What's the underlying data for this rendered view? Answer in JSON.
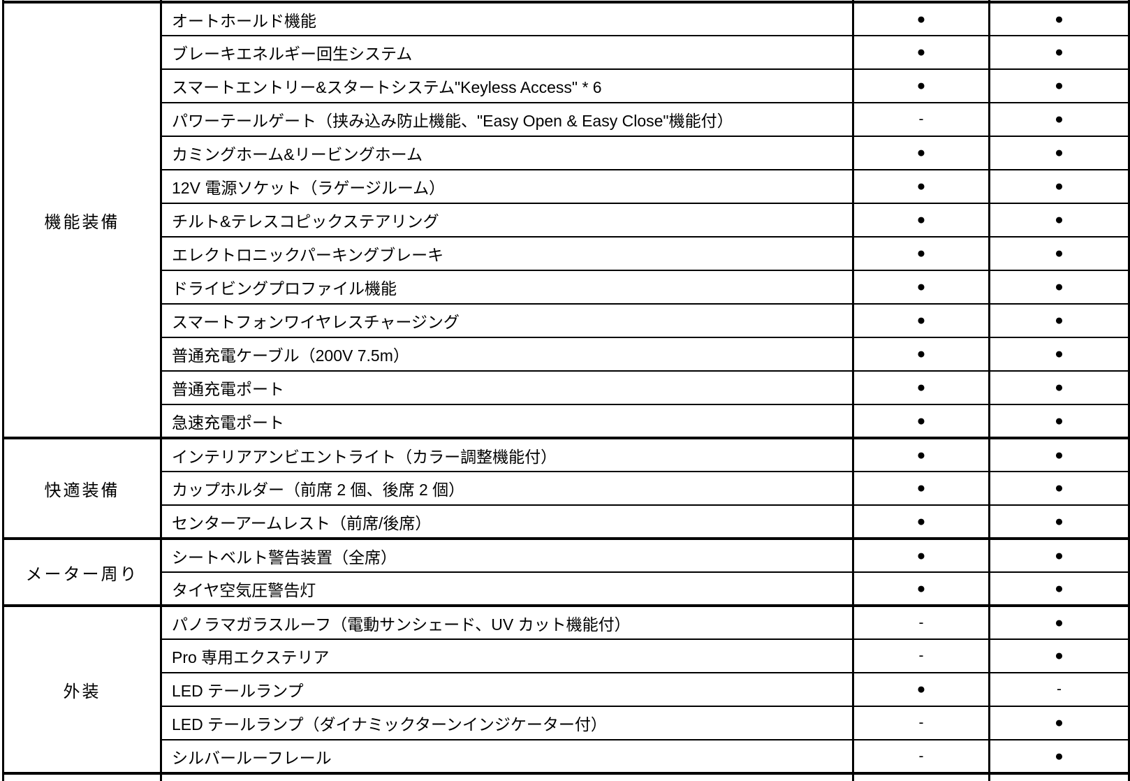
{
  "colors": {
    "background": "#ffffff",
    "text": "#000000",
    "grid_lines": "#000000"
  },
  "marks": {
    "equipped": "●",
    "not_equipped": "-"
  },
  "table": {
    "sections": [
      {
        "category": "機能装備",
        "rows": [
          {
            "feature": "オートホールド機能",
            "marks": [
              "●",
              "●"
            ]
          },
          {
            "feature": "ブレーキエネルギー回生システム",
            "marks": [
              "●",
              "●"
            ]
          },
          {
            "feature": "スマートエントリー&スタートシステム\"Keyless Access\" * 6",
            "marks": [
              "●",
              "●"
            ]
          },
          {
            "feature": "パワーテールゲート（挟み込み防止機能、\"Easy Open & Easy Close\"機能付）",
            "marks": [
              "-",
              "●"
            ]
          },
          {
            "feature": "カミングホーム&リービングホーム",
            "marks": [
              "●",
              "●"
            ]
          },
          {
            "feature": "12V 電源ソケット（ラゲージルーム）",
            "marks": [
              "●",
              "●"
            ]
          },
          {
            "feature": "チルト&テレスコピックステアリング",
            "marks": [
              "●",
              "●"
            ]
          },
          {
            "feature": "エレクトロニックパーキングブレーキ",
            "marks": [
              "●",
              "●"
            ]
          },
          {
            "feature": "ドライビングプロファイル機能",
            "marks": [
              "●",
              "●"
            ]
          },
          {
            "feature": "スマートフォンワイヤレスチャージング",
            "marks": [
              "●",
              "●"
            ]
          },
          {
            "feature": "普通充電ケーブル（200V 7.5m）",
            "marks": [
              "●",
              "●"
            ]
          },
          {
            "feature": "普通充電ポート",
            "marks": [
              "●",
              "●"
            ]
          },
          {
            "feature": "急速充電ポート",
            "marks": [
              "●",
              "●"
            ]
          }
        ]
      },
      {
        "category": "快適装備",
        "rows": [
          {
            "feature": "インテリアアンビエントライト（カラー調整機能付）",
            "marks": [
              "●",
              "●"
            ]
          },
          {
            "feature": "カップホルダー（前席 2 個、後席 2 個）",
            "marks": [
              "●",
              "●"
            ]
          },
          {
            "feature": "センターアームレスト（前席/後席）",
            "marks": [
              "●",
              "●"
            ]
          }
        ]
      },
      {
        "category": "メーター周り",
        "rows": [
          {
            "feature": "シートベルト警告装置（全席）",
            "marks": [
              "●",
              "●"
            ]
          },
          {
            "feature": "タイヤ空気圧警告灯",
            "marks": [
              "●",
              "●"
            ]
          }
        ]
      },
      {
        "category": "外装",
        "rows": [
          {
            "feature": "パノラマガラスルーフ（電動サンシェード、UV カット機能付）",
            "marks": [
              "-",
              "●"
            ]
          },
          {
            "feature": "Pro 専用エクステリア",
            "marks": [
              "-",
              "●"
            ]
          },
          {
            "feature": "LED テールランプ",
            "marks": [
              "●",
              "-"
            ]
          },
          {
            "feature": "LED テールランプ（ダイナミックターンインジケーター付）",
            "marks": [
              "-",
              "●"
            ]
          },
          {
            "feature": "シルバールーフレール",
            "marks": [
              "-",
              "●"
            ]
          }
        ]
      }
    ]
  }
}
